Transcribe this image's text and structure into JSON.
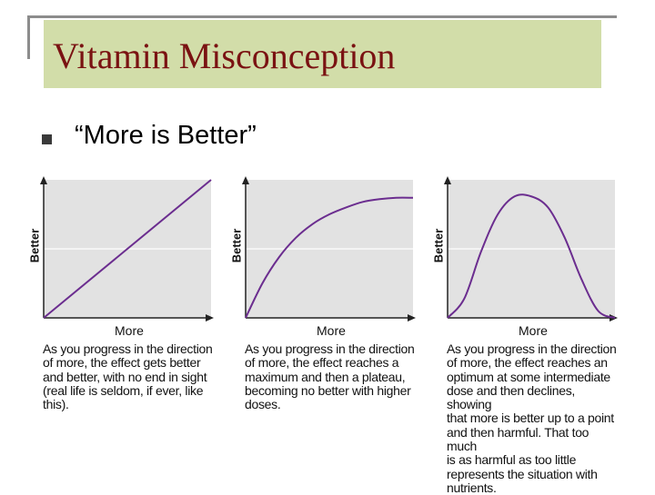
{
  "slide": {
    "title": "Vitamin Misconception",
    "bullet": "“More is Better”"
  },
  "colors": {
    "title_bg": "#d2dda9",
    "title_text": "#7a1212",
    "plot_bg": "#e2e2e2",
    "curve": "#6b2d8f",
    "axis": "#222222"
  },
  "chart_data": [
    {
      "type": "line",
      "title": "",
      "xlabel": "More",
      "ylabel": "Better",
      "xlim": [
        0,
        1
      ],
      "ylim": [
        0,
        1
      ],
      "grid": false,
      "x": [
        0,
        1
      ],
      "y": [
        0,
        1
      ],
      "reference_line_y": 0.5,
      "caption": [
        "As you progress in the direction",
        "of more, the effect gets better",
        "and better, with no end in sight",
        "(real life is seldom, if ever, like",
        "this)."
      ]
    },
    {
      "type": "line",
      "title": "",
      "xlabel": "More",
      "ylabel": "Better",
      "xlim": [
        0,
        1
      ],
      "ylim": [
        0,
        1
      ],
      "grid": false,
      "x": [
        0,
        0.1,
        0.2,
        0.3,
        0.4,
        0.5,
        0.6,
        0.7,
        0.8,
        0.9,
        1.0
      ],
      "y": [
        0.0,
        0.25,
        0.44,
        0.58,
        0.68,
        0.75,
        0.8,
        0.84,
        0.86,
        0.87,
        0.87
      ],
      "reference_line_y": 0.5,
      "caption": [
        "As you progress in the direction",
        "of more, the effect reaches a",
        "maximum and then a plateau,",
        "becoming no better with higher",
        "doses."
      ]
    },
    {
      "type": "line",
      "title": "",
      "xlabel": "More",
      "ylabel": "Better",
      "xlim": [
        0,
        1
      ],
      "ylim": [
        0,
        1
      ],
      "grid": false,
      "x": [
        0,
        0.1,
        0.2,
        0.3,
        0.4,
        0.5,
        0.6,
        0.7,
        0.8,
        0.9,
        1.0
      ],
      "y": [
        0.0,
        0.14,
        0.48,
        0.75,
        0.88,
        0.88,
        0.8,
        0.58,
        0.28,
        0.05,
        0.0
      ],
      "reference_line_y": 0.5,
      "caption": [
        "As you progress in the direction",
        "of more, the effect reaches an",
        "optimum at some intermediate",
        "dose and then declines, showing",
        "that more is better up to a point",
        "and then harmful. That too much",
        "is as harmful as too little",
        "represents  the situation with",
        "nutrients."
      ]
    }
  ]
}
